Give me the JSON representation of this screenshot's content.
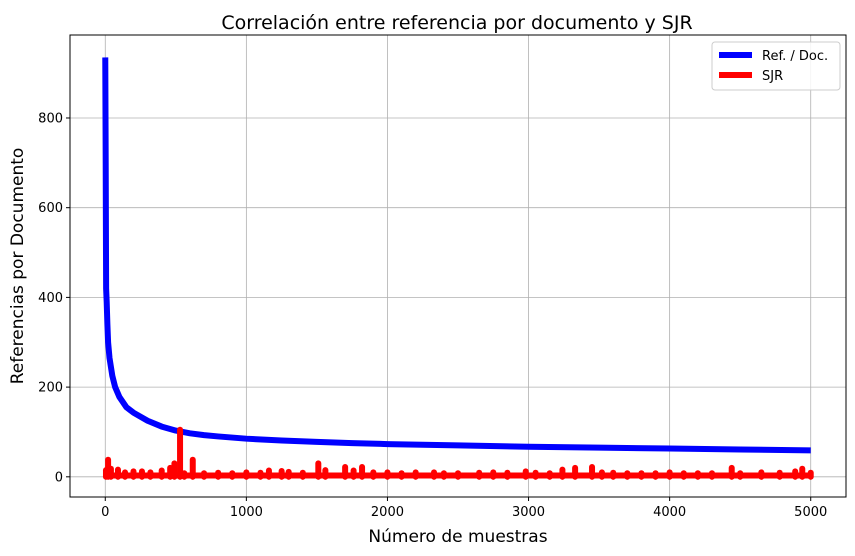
{
  "chart_data": {
    "type": "line",
    "title": "Correlación entre referencia por documento y SJR",
    "xlabel": "Número de muestras",
    "ylabel": "Referencias por Documento",
    "xlim": [
      -250,
      5250
    ],
    "ylim": [
      -45,
      985
    ],
    "xticks": [
      0,
      1000,
      2000,
      3000,
      4000,
      5000
    ],
    "yticks": [
      0,
      200,
      400,
      600,
      800
    ],
    "grid": true,
    "legend_position": "top-right",
    "series": [
      {
        "name": "Ref. / Doc.",
        "color": "#0000ff",
        "x": [
          0,
          3,
          6,
          10,
          15,
          20,
          30,
          40,
          50,
          70,
          100,
          150,
          200,
          300,
          400,
          500,
          600,
          700,
          800,
          1000,
          1250,
          1500,
          1750,
          2000,
          2500,
          3000,
          3500,
          4000,
          4500,
          5000
        ],
        "y": [
          935,
          700,
          420,
          390,
          340,
          300,
          265,
          245,
          225,
          200,
          178,
          155,
          143,
          125,
          112,
          103,
          97,
          93,
          90,
          85,
          81,
          78,
          75,
          73,
          70,
          67,
          65,
          63,
          61,
          59
        ]
      },
      {
        "name": "SJR",
        "color": "#ff0000",
        "baseline": 3,
        "spikes": [
          [
            5,
            15
          ],
          [
            20,
            38
          ],
          [
            40,
            18
          ],
          [
            90,
            16
          ],
          [
            140,
            10
          ],
          [
            200,
            12
          ],
          [
            260,
            12
          ],
          [
            320,
            10
          ],
          [
            400,
            14
          ],
          [
            460,
            20
          ],
          [
            490,
            30
          ],
          [
            530,
            105
          ],
          [
            560,
            8
          ],
          [
            620,
            38
          ],
          [
            700,
            8
          ],
          [
            800,
            9
          ],
          [
            900,
            8
          ],
          [
            1000,
            10
          ],
          [
            1100,
            9
          ],
          [
            1160,
            14
          ],
          [
            1250,
            13
          ],
          [
            1300,
            11
          ],
          [
            1400,
            9
          ],
          [
            1510,
            30
          ],
          [
            1560,
            15
          ],
          [
            1700,
            22
          ],
          [
            1760,
            14
          ],
          [
            1820,
            22
          ],
          [
            1900,
            10
          ],
          [
            2000,
            10
          ],
          [
            2100,
            8
          ],
          [
            2200,
            10
          ],
          [
            2330,
            10
          ],
          [
            2400,
            8
          ],
          [
            2500,
            8
          ],
          [
            2650,
            9
          ],
          [
            2750,
            10
          ],
          [
            2850,
            9
          ],
          [
            2980,
            12
          ],
          [
            3050,
            9
          ],
          [
            3150,
            8
          ],
          [
            3240,
            16
          ],
          [
            3330,
            20
          ],
          [
            3450,
            22
          ],
          [
            3520,
            10
          ],
          [
            3600,
            9
          ],
          [
            3700,
            8
          ],
          [
            3800,
            8
          ],
          [
            3900,
            8
          ],
          [
            4000,
            10
          ],
          [
            4100,
            8
          ],
          [
            4200,
            8
          ],
          [
            4300,
            8
          ],
          [
            4440,
            20
          ],
          [
            4500,
            8
          ],
          [
            4650,
            10
          ],
          [
            4780,
            9
          ],
          [
            4890,
            12
          ],
          [
            4940,
            18
          ],
          [
            5000,
            9
          ]
        ]
      }
    ]
  }
}
